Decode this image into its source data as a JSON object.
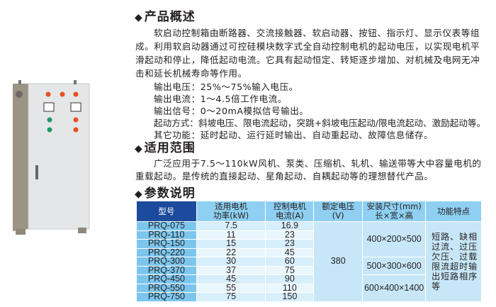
{
  "sections": {
    "overview": {
      "title": "产品概述",
      "paragraph_lines": [
        "软启动控制箱由断路器、交流接触器、软启动器、按钮、指示灯、显示仪表等组",
        "成。利用软启动器通过可控硅模块数字式全自动控制电机的起动电压，以实现电机平",
        "滑起动和停止，降低起动电流。它具有起动恒定、转矩逐步增加、对机械及电网无冲",
        "击和延长机械寿命等作用。"
      ],
      "specs": [
        "输出电压：25%～75%输入电压。",
        "输出电流：1～4.5倍工作电流。",
        "输出信号：0～20mA模拟信号输出。",
        "起动方式：斜坡电压、限电流起动，突跳+斜坡电压起动/限电流起动、激励起动等。",
        "其它功能：延时起动、运行延时输出、自动重起动、故障信息储存。"
      ]
    },
    "scope": {
      "title": "适用范围",
      "lines": [
        "广泛应用于7.5～110kW风机、泵类、压缩机、轧机、输送带等大中容量电机的",
        "重载起动。是传统的直接起动、星角起动、自耦起动等的理想替代产品。"
      ]
    },
    "params": {
      "title": "参数说明",
      "headers": [
        "型号",
        "适用电机功率(kW)",
        "控制电机电流(A)",
        "额定电压(V)",
        "安装尺寸(mm)长×宽×高",
        "功能特点"
      ],
      "header_lines": [
        [
          "型号"
        ],
        [
          "适用电机",
          "功率(kW)"
        ],
        [
          "控制电机",
          "电流(A)"
        ],
        [
          "额定电压",
          "(V)"
        ],
        [
          "安装尺寸(mm)",
          "长×宽×高"
        ],
        [
          "功能特点"
        ]
      ],
      "rows": [
        [
          "PRQ-075",
          "7.5",
          "16.9"
        ],
        [
          "PRQ-110",
          "11",
          "23"
        ],
        [
          "PRQ-150",
          "15",
          "23"
        ],
        [
          "PRQ-220",
          "22",
          "45"
        ],
        [
          "PRQ-300",
          "30",
          "60"
        ],
        [
          "PRQ-370",
          "37",
          "75"
        ],
        [
          "PRQ-450",
          "45",
          "90"
        ],
        [
          "PRQ-550",
          "55",
          "110"
        ],
        [
          "PRQ-750",
          "75",
          "150"
        ]
      ],
      "voltage": "380",
      "dimensions": [
        "400×200×500",
        "500×300×600",
        "600×400×1400"
      ],
      "features": "短路、缺相过流、过压欠压、过载限流超时输出短路相序等"
    }
  },
  "colors": {
    "header_dark": "#1c4a9c",
    "header_light": "#8fd0f2",
    "row_light": "#d7eefb"
  }
}
